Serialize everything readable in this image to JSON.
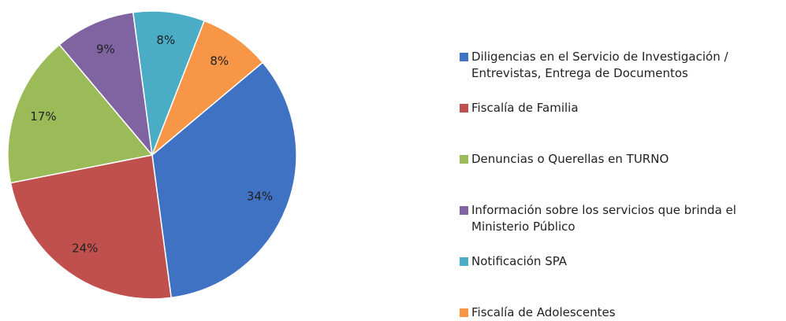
{
  "chart_data": {
    "type": "pie",
    "categories": [
      "Diligencias en el Servicio de Investigación / Entrevistas, Entrega de Documentos",
      "Fiscalía de Familia",
      "Denuncias o Querellas en TURNO",
      "Información sobre los servicios que brinda el Ministerio Público",
      "Notificación SPA",
      "Fiscalía de Adolescentes"
    ],
    "values": [
      34,
      24,
      17,
      9,
      8,
      8
    ],
    "value_labels": [
      "34%",
      "24%",
      "17%",
      "9%",
      "8%",
      "8%"
    ],
    "colors": [
      "#3f72c2",
      "#c0504d",
      "#9bbb59",
      "#8064a2",
      "#4bacc6",
      "#f79646"
    ],
    "legend": "right"
  }
}
